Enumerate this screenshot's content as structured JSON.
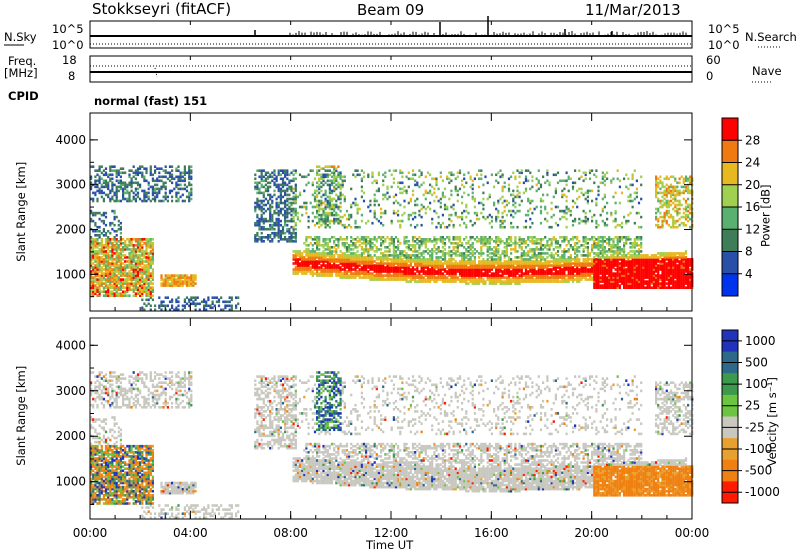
{
  "header": {
    "station": "Stokkseyri (fitACF)",
    "beam": "Beam 09",
    "date": "11/Mar/2013"
  },
  "strips": {
    "nsky_label": "N.Sky",
    "nsky_ticks": [
      "10^5",
      "10^0"
    ],
    "nsearch_label": "N.Search",
    "nsearch_ticks": [
      "10^5",
      "10^0"
    ],
    "freq_label": "Freq.",
    "freq_unit": "[MHz]",
    "freq_ticks": [
      "18",
      "8"
    ],
    "nave_label": "Nave",
    "nave_ticks": [
      "60",
      "0"
    ],
    "cpid_label": "CPID",
    "cpid_value": "normal (fast) 151"
  },
  "chart_data": [
    {
      "type": "heatmap",
      "name": "power",
      "ylabel": "Slant Range [km]",
      "xlabel": "Time UT",
      "x_ticks": [
        "00:00",
        "04:00",
        "08:00",
        "12:00",
        "16:00",
        "20:00",
        "00:00"
      ],
      "y_ticks": [
        "4000",
        "3000",
        "2000",
        "1000"
      ],
      "xlim": [
        0,
        24
      ],
      "ylim": [
        180,
        4600
      ],
      "colorbar": {
        "label": "Power [dB]",
        "ticks": [
          "28",
          "24",
          "20",
          "16",
          "12",
          "8",
          "4"
        ],
        "range": [
          0,
          30
        ],
        "colors": [
          "#0033ee",
          "#2a4fa8",
          "#3f7d58",
          "#5ab070",
          "#9fd04f",
          "#e8b820",
          "#f07a12",
          "#ff0000"
        ]
      }
    },
    {
      "type": "heatmap",
      "name": "velocity",
      "ylabel": "Slant Range [km]",
      "xlabel": "Time UT",
      "x_ticks": [
        "00:00",
        "04:00",
        "08:00",
        "12:00",
        "16:00",
        "20:00",
        "00:00"
      ],
      "y_ticks": [
        "4000",
        "3000",
        "2000",
        "1000"
      ],
      "xlim": [
        0,
        24
      ],
      "ylim": [
        180,
        4600
      ],
      "colorbar": {
        "label": "Velocity [m s⁻¹]",
        "ticks": [
          "1000",
          "500",
          "100",
          "25",
          "-25",
          "-100",
          "-500",
          "-1000"
        ],
        "colors": [
          "#2233bb",
          "#2d6a8a",
          "#3d9a4d",
          "#6cc540",
          "#c8c8c0",
          "#e8a030",
          "#f08010",
          "#ff1a00"
        ]
      }
    }
  ],
  "colors": {
    "ground_scatter": "#c8c8c0"
  }
}
